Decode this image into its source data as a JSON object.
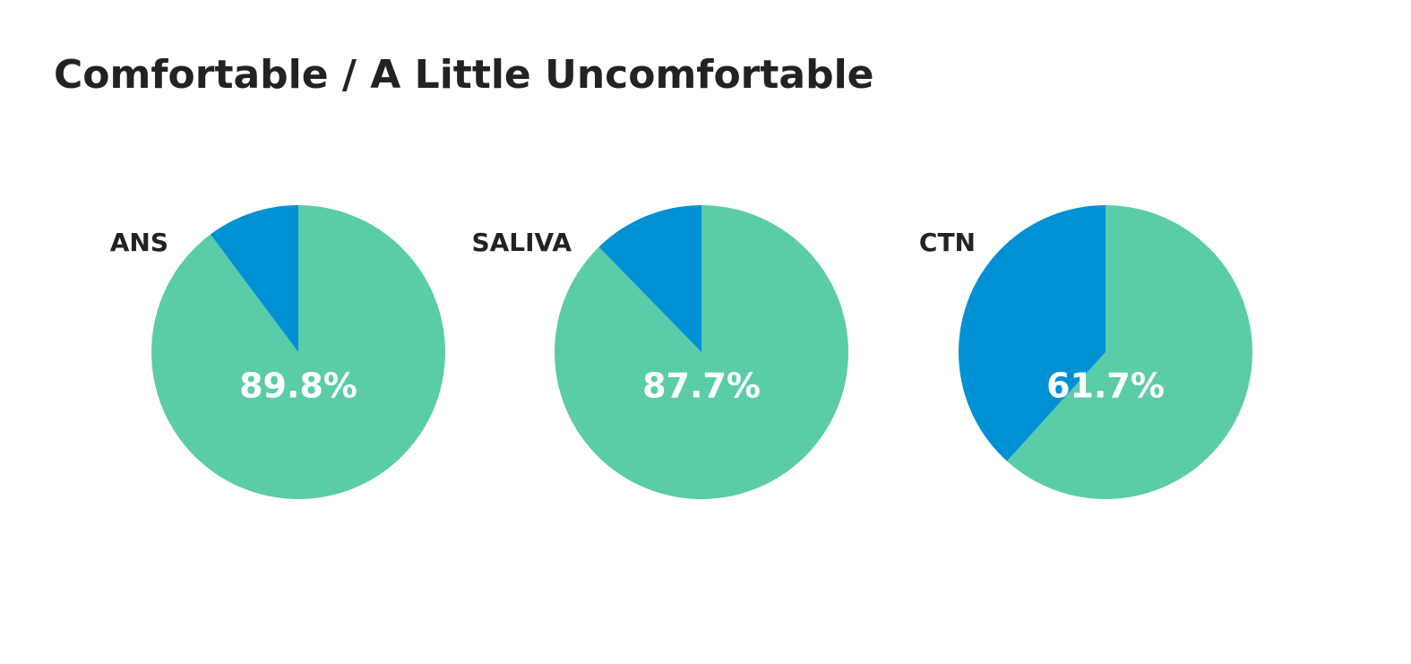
{
  "title": "Comfortable / A Little Uncomfortable",
  "chart_data": [
    {
      "type": "pie",
      "title": "ANS",
      "values": [
        89.8,
        10.2
      ],
      "value_labels": [
        "89.8%",
        null
      ],
      "colors": [
        "#5bcca8",
        "#0091d5"
      ]
    },
    {
      "type": "pie",
      "title": "SALIVA",
      "values": [
        87.7,
        12.3
      ],
      "value_labels": [
        "87.7%",
        null
      ],
      "colors": [
        "#5bcca8",
        "#0091d5"
      ]
    },
    {
      "type": "pie",
      "title": "CTN",
      "values": [
        61.7,
        38.3
      ],
      "value_labels": [
        "61.7%",
        null
      ],
      "colors": [
        "#5bcca8",
        "#0091d5"
      ]
    }
  ]
}
